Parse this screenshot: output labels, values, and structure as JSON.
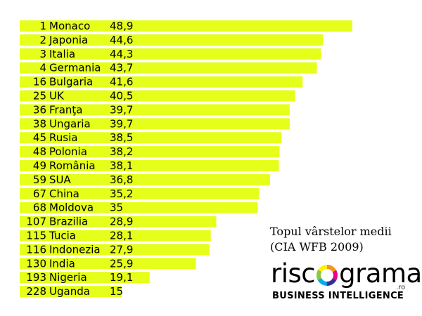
{
  "chart_data": {
    "type": "bar",
    "orientation": "horizontal",
    "categories": [
      "Monaco",
      "Japonia",
      "Italia",
      "Germania",
      "Bulgaria",
      "UK",
      "Franţa",
      "Ungaria",
      "Rusia",
      "Polonia",
      "România",
      "SUA",
      "China",
      "Moldova",
      "Brazilia",
      "Tucia",
      "Indonezia",
      "India",
      "Nigeria",
      "Uganda"
    ],
    "ranks": [
      "1",
      "2",
      "3",
      "4",
      "16",
      "25",
      "36",
      "38",
      "45",
      "48",
      "49",
      "59",
      "67",
      "68",
      "107",
      "115",
      "116",
      "130",
      "193",
      "228"
    ],
    "values": [
      48.9,
      44.6,
      44.3,
      43.7,
      41.6,
      40.5,
      39.7,
      39.7,
      38.5,
      38.2,
      38.1,
      36.8,
      35.2,
      35,
      28.9,
      28.1,
      27.9,
      25.9,
      19.1,
      15
    ],
    "value_labels": [
      "48,9",
      "44,6",
      "44,3",
      "43,7",
      "41,6",
      "40,5",
      "39,7",
      "39,7",
      "38,5",
      "38,2",
      "38,1",
      "36,8",
      "35,2",
      "35",
      "28,9",
      "28,1",
      "27,9",
      "25,9",
      "19,1",
      "15"
    ],
    "bar_color": "#e5ff1a",
    "grid": false,
    "legend": "none"
  },
  "title_lines": [
    "Topul vârstelor medii",
    "(CIA WFB 2009)"
  ],
  "logo": {
    "word_left": "risc",
    "word_right": "grama",
    "suffix": ".ro",
    "tagline": "BUSINESS INTELLIGENCE",
    "ring_colors": [
      "#f7941d",
      "#ec008c",
      "#2e3192",
      "#00aeef",
      "#8dc63f",
      "#fff200"
    ]
  }
}
